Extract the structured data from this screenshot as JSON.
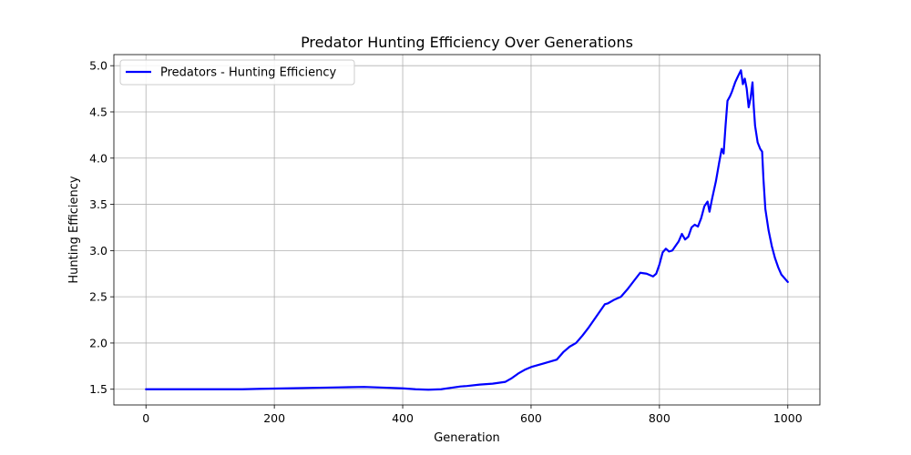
{
  "chart_data": {
    "type": "line",
    "title": "Predator Hunting Efficiency Over Generations",
    "xlabel": "Generation",
    "ylabel": "Hunting Efficiency",
    "xlim": [
      -50,
      1050
    ],
    "ylim": [
      1.33,
      5.12
    ],
    "x_ticks": [
      0,
      200,
      400,
      600,
      800,
      1000
    ],
    "x_tick_labels": [
      "0",
      "200",
      "400",
      "600",
      "800",
      "1000"
    ],
    "y_ticks": [
      1.5,
      2.0,
      2.5,
      3.0,
      3.5,
      4.0,
      4.5,
      5.0
    ],
    "y_tick_labels": [
      "1.5",
      "2.0",
      "2.5",
      "3.0",
      "3.5",
      "4.0",
      "4.5",
      "5.0"
    ],
    "grid": true,
    "legend_position": "top-left",
    "series": [
      {
        "name": "Predators - Hunting Efficiency",
        "color": "#0000ff",
        "points": [
          [
            0,
            1.5
          ],
          [
            50,
            1.5
          ],
          [
            100,
            1.5
          ],
          [
            150,
            1.5
          ],
          [
            180,
            1.505
          ],
          [
            220,
            1.51
          ],
          [
            260,
            1.515
          ],
          [
            300,
            1.52
          ],
          [
            340,
            1.525
          ],
          [
            360,
            1.52
          ],
          [
            380,
            1.515
          ],
          [
            400,
            1.51
          ],
          [
            420,
            1.5
          ],
          [
            440,
            1.495
          ],
          [
            460,
            1.5
          ],
          [
            470,
            1.51
          ],
          [
            490,
            1.53
          ],
          [
            500,
            1.535
          ],
          [
            520,
            1.55
          ],
          [
            540,
            1.56
          ],
          [
            560,
            1.58
          ],
          [
            570,
            1.62
          ],
          [
            580,
            1.67
          ],
          [
            590,
            1.71
          ],
          [
            600,
            1.74
          ],
          [
            620,
            1.78
          ],
          [
            640,
            1.82
          ],
          [
            650,
            1.9
          ],
          [
            660,
            1.96
          ],
          [
            670,
            2.0
          ],
          [
            680,
            2.08
          ],
          [
            690,
            2.17
          ],
          [
            700,
            2.27
          ],
          [
            710,
            2.37
          ],
          [
            715,
            2.42
          ],
          [
            720,
            2.43
          ],
          [
            730,
            2.47
          ],
          [
            740,
            2.5
          ],
          [
            750,
            2.58
          ],
          [
            760,
            2.67
          ],
          [
            770,
            2.76
          ],
          [
            780,
            2.75
          ],
          [
            790,
            2.72
          ],
          [
            795,
            2.75
          ],
          [
            800,
            2.85
          ],
          [
            805,
            2.98
          ],
          [
            810,
            3.02
          ],
          [
            815,
            2.99
          ],
          [
            820,
            3.0
          ],
          [
            825,
            3.05
          ],
          [
            830,
            3.1
          ],
          [
            835,
            3.18
          ],
          [
            840,
            3.12
          ],
          [
            845,
            3.15
          ],
          [
            850,
            3.25
          ],
          [
            855,
            3.28
          ],
          [
            860,
            3.26
          ],
          [
            865,
            3.35
          ],
          [
            870,
            3.48
          ],
          [
            875,
            3.53
          ],
          [
            878,
            3.42
          ],
          [
            882,
            3.56
          ],
          [
            888,
            3.75
          ],
          [
            893,
            3.95
          ],
          [
            897,
            4.1
          ],
          [
            900,
            4.05
          ],
          [
            903,
            4.35
          ],
          [
            906,
            4.62
          ],
          [
            910,
            4.67
          ],
          [
            913,
            4.72
          ],
          [
            918,
            4.82
          ],
          [
            922,
            4.88
          ],
          [
            927,
            4.95
          ],
          [
            930,
            4.8
          ],
          [
            933,
            4.86
          ],
          [
            936,
            4.75
          ],
          [
            939,
            4.55
          ],
          [
            942,
            4.65
          ],
          [
            945,
            4.82
          ],
          [
            947,
            4.55
          ],
          [
            949,
            4.35
          ],
          [
            953,
            4.17
          ],
          [
            957,
            4.1
          ],
          [
            960,
            4.07
          ],
          [
            962,
            3.78
          ],
          [
            965,
            3.45
          ],
          [
            970,
            3.22
          ],
          [
            975,
            3.05
          ],
          [
            980,
            2.92
          ],
          [
            985,
            2.82
          ],
          [
            990,
            2.74
          ],
          [
            995,
            2.7
          ],
          [
            1000,
            2.66
          ]
        ]
      }
    ]
  }
}
